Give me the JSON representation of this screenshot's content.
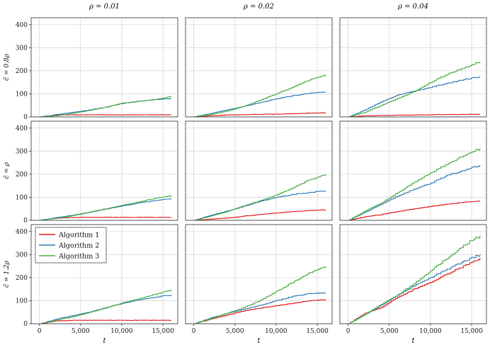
{
  "chart_data": {
    "type": "line",
    "layout": "grid 3x3",
    "column_titles": [
      "ρ = 0.01",
      "ρ = 0.02",
      "ρ = 0.04"
    ],
    "row_labels": [
      "c̃ = 0.8ρ",
      "c̃ = ρ",
      "c̃ = 1.2ρ"
    ],
    "xlabel": "t",
    "ylabel": "",
    "xlim": [
      -1000,
      16800
    ],
    "ylim": [
      0,
      430
    ],
    "xticks": [
      0,
      5000,
      10000,
      15000
    ],
    "xtick_labels": [
      "0",
      "5,000",
      "10,000",
      "15,000"
    ],
    "yticks": [
      0,
      100,
      200,
      300,
      400
    ],
    "grid": true,
    "legend": {
      "placement": "top-left of bottom-left panel",
      "entries": [
        "Algorithm 1",
        "Algorithm 2",
        "Algorithm 3"
      ]
    },
    "series_colors": {
      "Algorithm 1": "#e41a1c",
      "Algorithm 2": "#377eb8",
      "Algorithm 3": "#4daf4a"
    },
    "x": [
      0,
      2000,
      4000,
      6000,
      8000,
      10000,
      12000,
      14000,
      16000
    ],
    "panels": [
      {
        "row": 0,
        "col": 0,
        "series": [
          {
            "name": "Algorithm 1",
            "values": [
              0,
              8,
              9,
              9,
              9,
              9,
              9,
              9,
              9
            ]
          },
          {
            "name": "Algorithm 2",
            "values": [
              0,
              10,
              20,
              30,
              42,
              58,
              68,
              75,
              80
            ]
          },
          {
            "name": "Algorithm 3",
            "values": [
              0,
              5,
              15,
              28,
              42,
              60,
              68,
              75,
              90
            ]
          }
        ]
      },
      {
        "row": 0,
        "col": 1,
        "series": [
          {
            "name": "Algorithm 1",
            "values": [
              0,
              5,
              8,
              10,
              11,
              12,
              14,
              16,
              18
            ]
          },
          {
            "name": "Algorithm 2",
            "values": [
              0,
              15,
              30,
              45,
              62,
              78,
              92,
              102,
              108
            ]
          },
          {
            "name": "Algorithm 3",
            "values": [
              0,
              10,
              25,
              45,
              72,
              100,
              130,
              160,
              183
            ]
          }
        ]
      },
      {
        "row": 0,
        "col": 2,
        "series": [
          {
            "name": "Algorithm 1",
            "values": [
              0,
              5,
              6,
              7,
              8,
              9,
              10,
              11,
              12
            ]
          },
          {
            "name": "Algorithm 2",
            "values": [
              0,
              30,
              65,
              95,
              112,
              128,
              145,
              162,
              175
            ]
          },
          {
            "name": "Algorithm 3",
            "values": [
              0,
              20,
              50,
              80,
              110,
              150,
              185,
              212,
              240
            ]
          }
        ]
      },
      {
        "row": 1,
        "col": 0,
        "series": [
          {
            "name": "Algorithm 1",
            "values": [
              0,
              10,
              12,
              13,
              13,
              13,
              13,
              13,
              13
            ]
          },
          {
            "name": "Algorithm 2",
            "values": [
              0,
              12,
              22,
              35,
              48,
              62,
              75,
              85,
              95
            ]
          },
          {
            "name": "Algorithm 3",
            "values": [
              0,
              8,
              20,
              35,
              50,
              65,
              80,
              95,
              108
            ]
          }
        ]
      },
      {
        "row": 1,
        "col": 1,
        "series": [
          {
            "name": "Algorithm 1",
            "values": [
              0,
              5,
              10,
              18,
              25,
              32,
              38,
              42,
              46
            ]
          },
          {
            "name": "Algorithm 2",
            "values": [
              0,
              22,
              40,
              60,
              82,
              100,
              112,
              120,
              128
            ]
          },
          {
            "name": "Algorithm 3",
            "values": [
              0,
              18,
              38,
              62,
              85,
              110,
              142,
              175,
              200
            ]
          }
        ]
      },
      {
        "row": 1,
        "col": 2,
        "series": [
          {
            "name": "Algorithm 1",
            "values": [
              0,
              15,
              25,
              38,
              50,
              60,
              70,
              78,
              85
            ]
          },
          {
            "name": "Algorithm 2",
            "values": [
              0,
              35,
              70,
              105,
              135,
              160,
              195,
              215,
              240
            ]
          },
          {
            "name": "Algorithm 3",
            "values": [
              0,
              40,
              75,
              120,
              165,
              205,
              245,
              280,
              312
            ]
          }
        ]
      },
      {
        "row": 2,
        "col": 0,
        "series": [
          {
            "name": "Algorithm 1",
            "values": [
              0,
              12,
              15,
              15,
              15,
              15,
              15,
              15,
              15
            ]
          },
          {
            "name": "Algorithm 2",
            "values": [
              0,
              20,
              35,
              50,
              70,
              88,
              102,
              115,
              125
            ]
          },
          {
            "name": "Algorithm 3",
            "values": [
              0,
              15,
              30,
              48,
              68,
              90,
              108,
              128,
              148
            ]
          }
        ]
      },
      {
        "row": 2,
        "col": 1,
        "series": [
          {
            "name": "Algorithm 1",
            "values": [
              0,
              20,
              38,
              55,
              68,
              78,
              88,
              100,
              105
            ]
          },
          {
            "name": "Algorithm 2",
            "values": [
              0,
              25,
              45,
              62,
              80,
              100,
              118,
              130,
              135
            ]
          },
          {
            "name": "Algorithm 3",
            "values": [
              0,
              22,
              45,
              70,
              100,
              140,
              180,
              220,
              250
            ]
          }
        ]
      },
      {
        "row": 2,
        "col": 2,
        "series": [
          {
            "name": "Algorithm 1",
            "values": [
              0,
              45,
              70,
              115,
              150,
              180,
              215,
              250,
              285
            ]
          },
          {
            "name": "Algorithm 2",
            "values": [
              0,
              40,
              80,
              125,
              165,
              200,
              235,
              270,
              300
            ]
          },
          {
            "name": "Algorithm 3",
            "values": [
              0,
              40,
              85,
              125,
              175,
              230,
              285,
              340,
              382
            ]
          }
        ]
      }
    ]
  }
}
